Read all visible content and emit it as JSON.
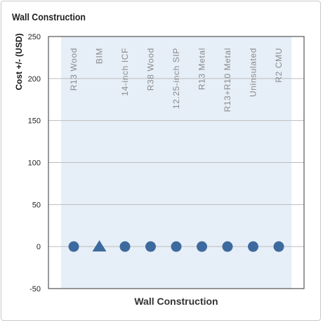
{
  "header": {
    "title": "Wall Construction"
  },
  "chart_data": {
    "type": "scatter",
    "title": "Wall Construction",
    "xlabel": "Wall Construction",
    "ylabel": "Cost +/- (USD)",
    "ylim": [
      -50,
      250
    ],
    "yticks": [
      250,
      200,
      150,
      100,
      50,
      0,
      -50
    ],
    "grid": true,
    "categories": [
      "R13 Wood",
      "BIM",
      "14-inch ICF",
      "R38 Wood",
      "12.25-inch SIP",
      "R13 Metal",
      "R13+R10 Metal",
      "Uninsulated",
      "R2 CMU"
    ],
    "values": [
      0,
      0,
      0,
      0,
      0,
      0,
      0,
      0,
      0
    ],
    "markers": [
      "circle",
      "triangle",
      "circle",
      "circle",
      "circle",
      "circle",
      "circle",
      "circle",
      "circle"
    ],
    "colors": {
      "marker": "#3d6a9e",
      "band": "#e6eff8",
      "grid": "#bcbcbc",
      "axis": "#333333"
    }
  }
}
